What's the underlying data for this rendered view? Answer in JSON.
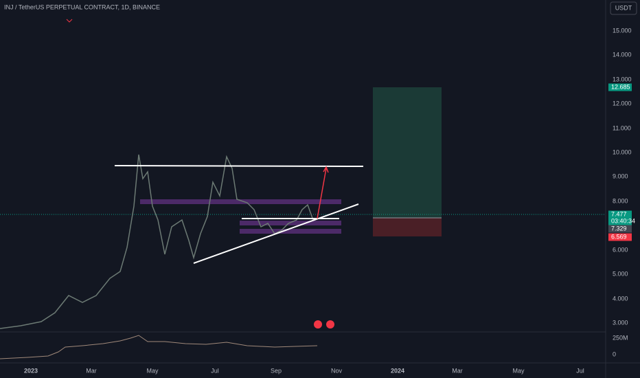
{
  "header": {
    "title": "INJ / TetherUS PERPETUAL CONTRACT, 1D, BINANCE",
    "currency": "USDT"
  },
  "price_axis": [
    "15.000",
    "14.000",
    "13.000",
    "12.000",
    "11.000",
    "10.000",
    "9.000",
    "8.000",
    "6.000",
    "5.000",
    "4.000",
    "3.000"
  ],
  "volume_axis": [
    "250M",
    "0"
  ],
  "time_axis": [
    "2023",
    "Mar",
    "May",
    "Jul",
    "Sep",
    "Nov",
    "2024",
    "Mar",
    "May",
    "Jul"
  ],
  "price_tags": {
    "target": "12.685",
    "last": "7.477",
    "countdown": "03:40:34",
    "entry": "7.329",
    "stop": "6.569"
  }
}
